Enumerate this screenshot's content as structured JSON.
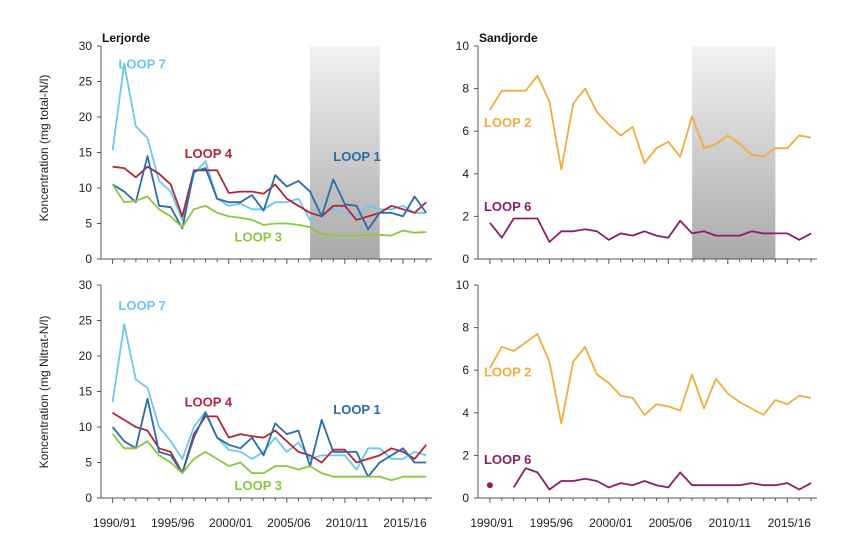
{
  "ylabels": {
    "top": "Koncentration (mg total-N/l)",
    "bottom": "Koncentration (mg Nitrat-N/l)"
  },
  "x_tick_labels": [
    "1990/91",
    "1995/96",
    "2000/01",
    "2005/06",
    "2010/11",
    "2015/16"
  ],
  "colors": {
    "LOOP 1": "#2b6ca8",
    "LOOP 2": "#f0ad3f",
    "LOOP 3": "#8cc63f",
    "LOOP 4": "#b3263a",
    "LOOP 6": "#8a1e6b",
    "LOOP 7": "#6cc8e8"
  },
  "chart_data": [
    {
      "id": "tl",
      "type": "line",
      "title": "Lerjorde",
      "ylabel": "Koncentration (mg total-N/l)",
      "ylim": [
        0,
        30
      ],
      "yticks": [
        0,
        5,
        10,
        15,
        20,
        25,
        30
      ],
      "xrange": [
        1989,
        2017.5
      ],
      "shade": [
        2007,
        2013
      ],
      "series": [
        {
          "name": "LOOP 7",
          "label_at": [
            1990.5,
            26.8
          ],
          "x": [
            1990,
            1991,
            1992,
            1993,
            1994,
            1995,
            1996,
            1997,
            1998,
            1999,
            2000,
            2001,
            2002,
            2003,
            2004,
            2005,
            2006,
            2007,
            2008,
            2009,
            2010,
            2011,
            2012,
            2013,
            2014,
            2015,
            2016,
            2017
          ],
          "y": [
            15.3,
            27.5,
            18.7,
            17.0,
            11.0,
            9.5,
            5.5,
            12.0,
            13.8,
            8.5,
            7.5,
            7.8,
            7.0,
            7.0,
            8.0,
            8.0,
            8.5,
            5.5,
            6.5,
            7.0,
            6.5,
            6.0,
            7.5,
            7.0,
            7.0,
            7.5,
            6.5,
            6.5
          ]
        },
        {
          "name": "LOOP 4",
          "label_at": [
            1996.2,
            14.2
          ],
          "x": [
            1990,
            1991,
            1992,
            1993,
            1994,
            1995,
            1996,
            1997,
            1998,
            1999,
            2000,
            2001,
            2002,
            2003,
            2004,
            2005,
            2006,
            2007,
            2008,
            2009,
            2010,
            2011,
            2012,
            2013,
            2014,
            2015,
            2016,
            2017
          ],
          "y": [
            13.0,
            12.8,
            11.5,
            13.0,
            12.0,
            10.5,
            6.0,
            12.5,
            12.5,
            12.5,
            9.3,
            9.5,
            9.5,
            9.2,
            10.5,
            8.5,
            7.5,
            6.5,
            6.0,
            7.5,
            7.5,
            5.5,
            6.0,
            6.5,
            7.5,
            7.0,
            6.5,
            8.0
          ]
        },
        {
          "name": "LOOP 1",
          "label_at": [
            2009.0,
            13.8
          ],
          "x": [
            1990,
            1991,
            1992,
            1993,
            1994,
            1995,
            1996,
            1997,
            1998,
            1999,
            2000,
            2001,
            2002,
            2003,
            2004,
            2005,
            2006,
            2007,
            2008,
            2009,
            2010,
            2011,
            2012,
            2013,
            2014,
            2015,
            2016,
            2017
          ],
          "y": [
            10.5,
            9.5,
            8.0,
            14.5,
            7.5,
            7.3,
            4.3,
            12.3,
            12.8,
            8.5,
            8.0,
            8.0,
            9.0,
            6.8,
            11.8,
            10.2,
            11.0,
            9.5,
            6.0,
            11.2,
            7.7,
            7.5,
            4.2,
            6.5,
            6.5,
            6.0,
            8.8,
            6.5
          ]
        },
        {
          "name": "LOOP 3",
          "label_at": [
            2000.5,
            2.5
          ],
          "x": [
            1990,
            1991,
            1992,
            1993,
            1994,
            1995,
            1996,
            1997,
            1998,
            1999,
            2000,
            2001,
            2002,
            2003,
            2004,
            2005,
            2006,
            2007,
            2008,
            2009,
            2010,
            2011,
            2012,
            2013,
            2014,
            2015,
            2016,
            2017
          ],
          "y": [
            10.5,
            8.0,
            8.2,
            8.8,
            7.0,
            6.0,
            4.5,
            7.0,
            7.5,
            6.5,
            6.0,
            5.8,
            5.5,
            4.8,
            5.0,
            5.0,
            4.8,
            4.5,
            3.5,
            3.3,
            3.3,
            3.3,
            3.4,
            3.4,
            3.3,
            4.0,
            3.7,
            3.8
          ]
        }
      ]
    },
    {
      "id": "tr",
      "type": "line",
      "title": "Sandjorde",
      "ylim": [
        0,
        10
      ],
      "yticks": [
        0,
        2,
        4,
        6,
        8,
        10
      ],
      "xrange": [
        1989,
        2017.5
      ],
      "shade": [
        2007,
        2014
      ],
      "series": [
        {
          "name": "LOOP 2",
          "label_at": [
            1989.5,
            6.2
          ],
          "x": [
            1990,
            1991,
            1992,
            1993,
            1994,
            1995,
            1996,
            1997,
            1998,
            1999,
            2000,
            2001,
            2002,
            2003,
            2004,
            2005,
            2006,
            2007,
            2008,
            2009,
            2010,
            2011,
            2012,
            2013,
            2014,
            2015,
            2016,
            2017
          ],
          "y": [
            7.0,
            7.9,
            7.9,
            7.9,
            8.6,
            7.4,
            4.2,
            7.3,
            8.0,
            6.9,
            6.3,
            5.8,
            6.2,
            4.5,
            5.2,
            5.5,
            4.8,
            6.7,
            5.2,
            5.4,
            5.8,
            5.4,
            4.9,
            4.8,
            5.2,
            5.2,
            5.8,
            5.7
          ]
        },
        {
          "name": "LOOP 6",
          "label_at": [
            1989.5,
            2.25
          ],
          "x": [
            1990,
            1991,
            1992,
            1993,
            1994,
            1995,
            1996,
            1997,
            1998,
            1999,
            2000,
            2001,
            2002,
            2003,
            2004,
            2005,
            2006,
            2007,
            2008,
            2009,
            2010,
            2011,
            2012,
            2013,
            2014,
            2015,
            2016,
            2017
          ],
          "y": [
            1.7,
            1.0,
            1.9,
            1.9,
            1.9,
            0.8,
            1.3,
            1.3,
            1.4,
            1.3,
            0.9,
            1.2,
            1.1,
            1.3,
            1.1,
            1.0,
            1.8,
            1.2,
            1.3,
            1.1,
            1.1,
            1.1,
            1.3,
            1.2,
            1.2,
            1.2,
            0.9,
            1.2
          ]
        }
      ]
    },
    {
      "id": "bl",
      "type": "line",
      "title": "",
      "ylabel": "Koncentration (mg Nitrat-N/l)",
      "ylim": [
        0,
        30
      ],
      "yticks": [
        0,
        5,
        10,
        15,
        20,
        25,
        30
      ],
      "xrange": [
        1989,
        2017.5
      ],
      "series": [
        {
          "name": "LOOP 7",
          "label_at": [
            1990.5,
            26.5
          ],
          "x": [
            1990,
            1991,
            1992,
            1993,
            1994,
            1995,
            1996,
            1997,
            1998,
            1999,
            2000,
            2001,
            2002,
            2003,
            2004,
            2005,
            2006,
            2007,
            2008,
            2009,
            2010,
            2011,
            2012,
            2013,
            2014,
            2015,
            2016,
            2017
          ],
          "y": [
            13.5,
            24.5,
            16.7,
            15.5,
            10.0,
            8.0,
            5.5,
            10.0,
            12.2,
            8.5,
            6.8,
            6.5,
            5.5,
            6.5,
            8.5,
            6.5,
            7.8,
            5.5,
            6.0,
            6.0,
            6.0,
            4.0,
            7.0,
            7.0,
            5.5,
            5.5,
            6.5,
            6.0
          ]
        },
        {
          "name": "LOOP 4",
          "label_at": [
            1996.2,
            12.9
          ],
          "x": [
            1990,
            1991,
            1992,
            1993,
            1994,
            1995,
            1996,
            1997,
            1998,
            1999,
            2000,
            2001,
            2002,
            2003,
            2004,
            2005,
            2006,
            2007,
            2008,
            2009,
            2010,
            2011,
            2012,
            2013,
            2014,
            2015,
            2016,
            2017
          ],
          "y": [
            12.0,
            11.0,
            10.0,
            9.5,
            7.0,
            6.5,
            3.5,
            9.0,
            11.5,
            11.5,
            8.5,
            9.0,
            8.7,
            8.5,
            9.5,
            8.0,
            6.5,
            6.0,
            5.0,
            6.8,
            6.8,
            5.0,
            5.5,
            6.0,
            7.0,
            6.5,
            5.5,
            7.5
          ]
        },
        {
          "name": "LOOP 1",
          "label_at": [
            2009.0,
            11.8
          ],
          "x": [
            1990,
            1991,
            1992,
            1993,
            1994,
            1995,
            1996,
            1997,
            1998,
            1999,
            2000,
            2001,
            2002,
            2003,
            2004,
            2005,
            2006,
            2007,
            2008,
            2009,
            2010,
            2011,
            2012,
            2013,
            2014,
            2015,
            2016,
            2017
          ],
          "y": [
            10.0,
            8.0,
            7.0,
            14.0,
            6.5,
            6.0,
            3.5,
            8.5,
            12.0,
            8.5,
            7.5,
            7.0,
            8.5,
            6.0,
            10.5,
            9.0,
            9.5,
            4.5,
            11.0,
            6.5,
            6.5,
            6.5,
            3.0,
            5.0,
            6.0,
            7.0,
            5.0,
            5.0
          ]
        },
        {
          "name": "LOOP 3",
          "label_at": [
            2000.5,
            1.1
          ],
          "x": [
            1990,
            1991,
            1992,
            1993,
            1994,
            1995,
            1996,
            1997,
            1998,
            1999,
            2000,
            2001,
            2002,
            2003,
            2004,
            2005,
            2006,
            2007,
            2008,
            2009,
            2010,
            2011,
            2012,
            2013,
            2014,
            2015,
            2016,
            2017
          ],
          "y": [
            9.0,
            7.0,
            7.0,
            8.0,
            6.0,
            5.0,
            3.5,
            5.5,
            6.5,
            5.5,
            4.5,
            5.0,
            3.5,
            3.5,
            4.5,
            4.5,
            4.0,
            4.5,
            3.5,
            3.0,
            3.0,
            3.0,
            3.0,
            3.0,
            2.5,
            3.0,
            3.0,
            3.0
          ]
        }
      ]
    },
    {
      "id": "br",
      "type": "line",
      "title": "",
      "ylim": [
        0,
        10
      ],
      "yticks": [
        0,
        2,
        4,
        6,
        8,
        10
      ],
      "xrange": [
        1989,
        2017.5
      ],
      "series": [
        {
          "name": "LOOP 2",
          "label_at": [
            1989.5,
            5.7
          ],
          "x": [
            1990,
            1991,
            1992,
            1993,
            1994,
            1995,
            1996,
            1997,
            1998,
            1999,
            2000,
            2001,
            2002,
            2003,
            2004,
            2005,
            2006,
            2007,
            2008,
            2009,
            2010,
            2011,
            2012,
            2013,
            2014,
            2015,
            2016,
            2017
          ],
          "y": [
            6.1,
            7.1,
            6.9,
            7.3,
            7.7,
            6.4,
            3.5,
            6.4,
            7.1,
            5.8,
            5.4,
            4.8,
            4.7,
            3.9,
            4.4,
            4.3,
            4.1,
            5.8,
            4.2,
            5.6,
            4.9,
            4.5,
            4.2,
            3.9,
            4.6,
            4.4,
            4.8,
            4.7
          ]
        },
        {
          "name": "LOOP 6",
          "label_at": [
            1989.5,
            1.6
          ],
          "points": [
            [
              1990,
              0.6
            ]
          ],
          "x": [
            1992,
            1993,
            1994,
            1995,
            1996,
            1997,
            1998,
            1999,
            2000,
            2001,
            2002,
            2003,
            2004,
            2005,
            2006,
            2007,
            2008,
            2009,
            2010,
            2011,
            2012,
            2013,
            2014,
            2015,
            2016,
            2017
          ],
          "y": [
            0.5,
            1.4,
            1.2,
            0.4,
            0.8,
            0.8,
            0.9,
            0.8,
            0.5,
            0.7,
            0.6,
            0.8,
            0.6,
            0.5,
            1.2,
            0.6,
            0.6,
            0.6,
            0.6,
            0.6,
            0.7,
            0.6,
            0.6,
            0.7,
            0.4,
            0.7
          ]
        }
      ]
    }
  ]
}
